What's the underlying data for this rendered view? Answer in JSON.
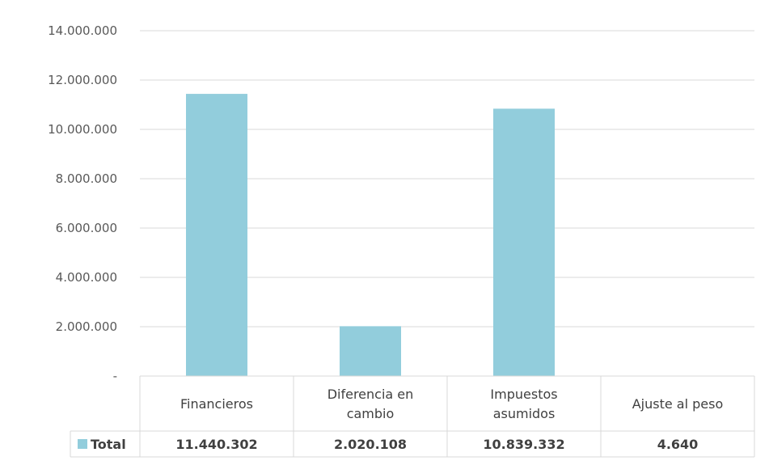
{
  "chart_data": {
    "type": "bar",
    "title": "",
    "xlabel": "",
    "ylabel": "",
    "ylim": [
      0,
      14000000
    ],
    "yticks": [
      0,
      2000000,
      4000000,
      6000000,
      8000000,
      10000000,
      12000000,
      14000000
    ],
    "ytick_labels": [
      "-",
      "2.000.000",
      "4.000.000",
      "6.000.000",
      "8.000.000",
      "10.000.000",
      "12.000.000",
      "14.000.000"
    ],
    "categories": [
      [
        "Financieros"
      ],
      [
        "Diferencia en",
        "cambio"
      ],
      [
        "Impuestos",
        "asumidos"
      ],
      [
        "Ajuste al peso"
      ]
    ],
    "series": [
      {
        "name": "Total",
        "values": [
          11440302,
          2020108,
          10839332,
          4640
        ],
        "value_labels": [
          "11.440.302",
          "2.020.108",
          "10.839.332",
          "4.640"
        ],
        "color": "#92cddc"
      }
    ],
    "grid": true,
    "legend": "data-table"
  }
}
